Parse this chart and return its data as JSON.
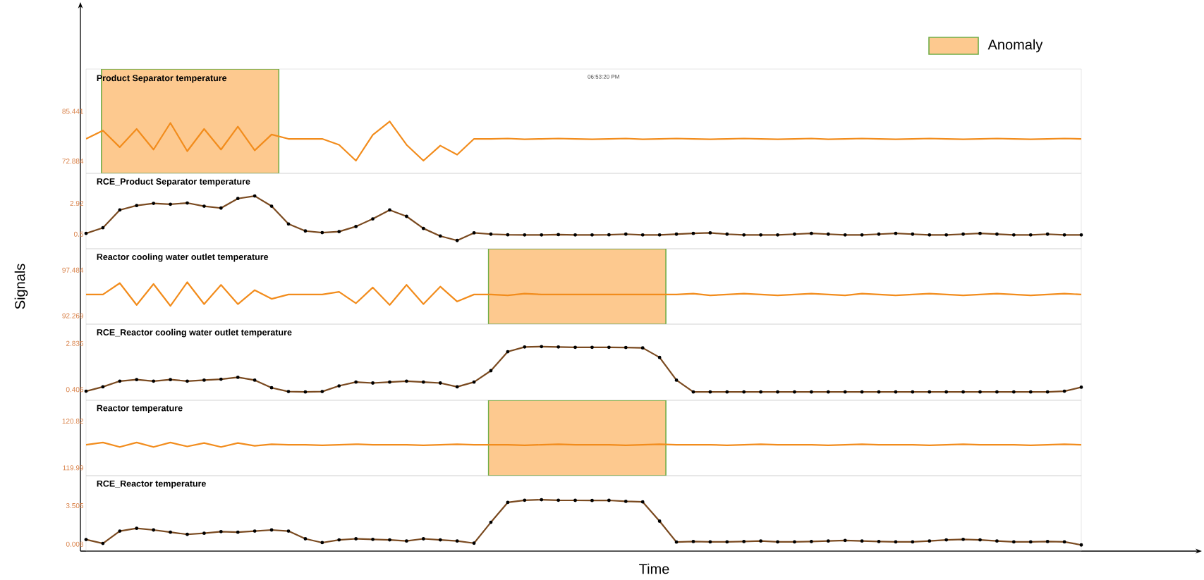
{
  "chart_data": [
    {
      "type": "line",
      "title": "Product Separator temperature",
      "annotations": [
        "06:53:20 PM",
        "Anomaly"
      ],
      "ylim": [
        69.8,
        96.1
      ],
      "yticks": [
        85.441,
        72.884
      ],
      "tick_labels": "y",
      "marker": "none",
      "line_style": "solid",
      "categories": [
        null,
        null,
        null,
        null,
        null,
        null,
        null,
        null,
        null,
        null,
        null,
        null,
        null,
        null,
        null,
        null,
        null,
        null,
        null,
        null,
        null,
        null,
        null,
        null,
        null,
        null,
        null,
        null,
        null,
        null,
        null,
        null,
        null,
        null,
        null,
        null,
        null,
        null,
        null,
        null,
        null,
        null,
        null,
        null,
        null,
        null,
        null,
        null,
        null,
        null,
        null,
        null,
        null,
        null,
        null,
        null,
        null,
        null,
        null,
        null
      ],
      "series": [
        {
          "color": "#f28c1c",
          "values": [
            78.5,
            80.6,
            76.4,
            81.0,
            75.8,
            82.5,
            75.4,
            81.0,
            75.8,
            81.6,
            75.6,
            79.6,
            78.5,
            78.5,
            78.5,
            77.0,
            73.0,
            79.5,
            82.9,
            77.0,
            73.0,
            76.8,
            74.5,
            78.5,
            78.5,
            78.6,
            78.4,
            78.5,
            78.6,
            78.5,
            78.4,
            78.5,
            78.6,
            78.4,
            78.5,
            78.6,
            78.5,
            78.4,
            78.5,
            78.6,
            78.5,
            78.4,
            78.5,
            78.6,
            78.4,
            78.5,
            78.6,
            78.5,
            78.4,
            78.5,
            78.6,
            78.5,
            78.4,
            78.5,
            78.6,
            78.5,
            78.4,
            78.5,
            78.6,
            78.5
          ]
        }
      ]
    },
    {
      "type": "line",
      "title": "RCE_Product Separator temperature",
      "ylim": [
        -0.65,
        5.28
      ],
      "yticks": [
        2.92,
        0.5
      ],
      "tick_labels": "y",
      "marker": "circle",
      "line_style": "solid",
      "categories": [
        null,
        null,
        null,
        null,
        null,
        null,
        null,
        null,
        null,
        null,
        null,
        null,
        null,
        null,
        null,
        null,
        null,
        null,
        null,
        null,
        null,
        null,
        null,
        null,
        null,
        null,
        null,
        null,
        null,
        null,
        null,
        null,
        null,
        null,
        null,
        null,
        null,
        null,
        null,
        null,
        null,
        null,
        null,
        null,
        null,
        null,
        null,
        null,
        null,
        null,
        null,
        null,
        null,
        null,
        null,
        null,
        null,
        null,
        null,
        null
      ],
      "series": [
        {
          "color": "#7a4a20",
          "values": [
            0.56,
            1.0,
            2.4,
            2.75,
            2.92,
            2.85,
            2.95,
            2.7,
            2.55,
            3.3,
            3.5,
            2.7,
            1.3,
            0.75,
            0.62,
            0.7,
            1.1,
            1.7,
            2.4,
            1.9,
            0.95,
            0.35,
            0.0,
            0.6,
            0.5,
            0.45,
            0.44,
            0.44,
            0.46,
            0.44,
            0.44,
            0.45,
            0.5,
            0.44,
            0.44,
            0.5,
            0.56,
            0.6,
            0.5,
            0.44,
            0.44,
            0.44,
            0.5,
            0.56,
            0.5,
            0.44,
            0.44,
            0.5,
            0.56,
            0.5,
            0.44,
            0.44,
            0.5,
            0.56,
            0.5,
            0.44,
            0.44,
            0.5,
            0.44,
            0.44
          ]
        }
      ]
    },
    {
      "type": "line",
      "title": "Reactor cooling water outlet temperature",
      "ylabel": "Signals",
      "ylim": [
        91.31,
        99.92
      ],
      "yticks": [
        97.484,
        92.269
      ],
      "tick_labels": "y",
      "marker": "none",
      "line_style": "solid",
      "categories": [
        null,
        null,
        null,
        null,
        null,
        null,
        null,
        null,
        null,
        null,
        null,
        null,
        null,
        null,
        null,
        null,
        null,
        null,
        null,
        null,
        null,
        null,
        null,
        null,
        null,
        null,
        null,
        null,
        null,
        null,
        null,
        null,
        null,
        null,
        null,
        null,
        null,
        null,
        null,
        null,
        null,
        null,
        null,
        null,
        null,
        null,
        null,
        null,
        null,
        null,
        null,
        null,
        null,
        null,
        null,
        null,
        null,
        null,
        null,
        null
      ],
      "series": [
        {
          "color": "#f28c1c",
          "values": [
            94.7,
            94.7,
            96.0,
            93.5,
            95.9,
            93.4,
            96.1,
            93.6,
            95.8,
            93.6,
            95.2,
            94.2,
            94.7,
            94.7,
            94.7,
            95.0,
            93.7,
            95.5,
            93.5,
            95.8,
            93.6,
            95.6,
            93.9,
            94.7,
            94.7,
            94.6,
            94.8,
            94.7,
            94.7,
            94.7,
            94.7,
            94.7,
            94.7,
            94.7,
            94.7,
            94.7,
            94.8,
            94.6,
            94.7,
            94.8,
            94.7,
            94.6,
            94.7,
            94.8,
            94.7,
            94.6,
            94.8,
            94.7,
            94.6,
            94.7,
            94.8,
            94.7,
            94.6,
            94.7,
            94.8,
            94.7,
            94.6,
            94.7,
            94.8,
            94.7
          ]
        }
      ]
    },
    {
      "type": "line",
      "title": "RCE_Reactor cooling water outlet temperature",
      "ylim": [
        -0.16,
        3.85
      ],
      "yticks": [
        2.835,
        0.406
      ],
      "tick_labels": "y",
      "marker": "circle",
      "line_style": "solid",
      "categories": [
        null,
        null,
        null,
        null,
        null,
        null,
        null,
        null,
        null,
        null,
        null,
        null,
        null,
        null,
        null,
        null,
        null,
        null,
        null,
        null,
        null,
        null,
        null,
        null,
        null,
        null,
        null,
        null,
        null,
        null,
        null,
        null,
        null,
        null,
        null,
        null,
        null,
        null,
        null,
        null,
        null,
        null,
        null,
        null,
        null,
        null,
        null,
        null,
        null,
        null,
        null,
        null,
        null,
        null,
        null,
        null,
        null,
        null,
        null,
        null
      ],
      "series": [
        {
          "color": "#7a4a20",
          "values": [
            0.32,
            0.55,
            0.85,
            0.93,
            0.85,
            0.93,
            0.85,
            0.9,
            0.95,
            1.05,
            0.9,
            0.5,
            0.3,
            0.28,
            0.3,
            0.6,
            0.8,
            0.75,
            0.8,
            0.85,
            0.8,
            0.75,
            0.55,
            0.8,
            1.4,
            2.4,
            2.65,
            2.67,
            2.65,
            2.63,
            2.63,
            2.63,
            2.62,
            2.6,
            2.1,
            0.9,
            0.28,
            0.28,
            0.28,
            0.28,
            0.28,
            0.28,
            0.28,
            0.28,
            0.28,
            0.28,
            0.28,
            0.28,
            0.28,
            0.28,
            0.28,
            0.28,
            0.28,
            0.28,
            0.28,
            0.28,
            0.28,
            0.28,
            0.32,
            0.53
          ]
        }
      ]
    },
    {
      "type": "line",
      "title": "Reactor temperature",
      "ylim": [
        119.85,
        121.19
      ],
      "yticks": [
        120.82,
        119.99
      ],
      "tick_labels": "y",
      "marker": "none",
      "line_style": "solid",
      "categories": [
        null,
        null,
        null,
        null,
        null,
        null,
        null,
        null,
        null,
        null,
        null,
        null,
        null,
        null,
        null,
        null,
        null,
        null,
        null,
        null,
        null,
        null,
        null,
        null,
        null,
        null,
        null,
        null,
        null,
        null,
        null,
        null,
        null,
        null,
        null,
        null,
        null,
        null,
        null,
        null,
        null,
        null,
        null,
        null,
        null,
        null,
        null,
        null,
        null,
        null,
        null,
        null,
        null,
        null,
        null,
        null,
        null,
        null,
        null,
        null
      ],
      "series": [
        {
          "color": "#f28c1c",
          "values": [
            120.4,
            120.44,
            120.36,
            120.44,
            120.36,
            120.44,
            120.37,
            120.43,
            120.36,
            120.43,
            120.38,
            120.41,
            120.4,
            120.4,
            120.39,
            120.4,
            120.41,
            120.4,
            120.4,
            120.4,
            120.39,
            120.4,
            120.41,
            120.4,
            120.4,
            120.4,
            120.39,
            120.4,
            120.41,
            120.4,
            120.4,
            120.4,
            120.39,
            120.4,
            120.41,
            120.4,
            120.4,
            120.4,
            120.39,
            120.4,
            120.41,
            120.4,
            120.4,
            120.4,
            120.39,
            120.4,
            120.41,
            120.4,
            120.4,
            120.4,
            120.39,
            120.4,
            120.41,
            120.4,
            120.4,
            120.4,
            120.39,
            120.4,
            120.41,
            120.4
          ]
        }
      ]
    },
    {
      "type": "line",
      "title": "RCE_Reactor temperature",
      "xlabel": "Time",
      "ylim": [
        -0.62,
        6.23
      ],
      "yticks": [
        3.505,
        0.008
      ],
      "tick_labels": "y",
      "marker": "circle",
      "line_style": "solid",
      "categories": [
        null,
        null,
        null,
        null,
        null,
        null,
        null,
        null,
        null,
        null,
        null,
        null,
        null,
        null,
        null,
        null,
        null,
        null,
        null,
        null,
        null,
        null,
        null,
        null,
        null,
        null,
        null,
        null,
        null,
        null,
        null,
        null,
        null,
        null,
        null,
        null,
        null,
        null,
        null,
        null,
        null,
        null,
        null,
        null,
        null,
        null,
        null,
        null,
        null,
        null,
        null,
        null,
        null,
        null,
        null,
        null,
        null,
        null,
        null,
        null
      ],
      "series": [
        {
          "color": "#7a4a20",
          "values": [
            0.43,
            0.08,
            1.2,
            1.45,
            1.3,
            1.1,
            0.9,
            1.0,
            1.15,
            1.1,
            1.2,
            1.3,
            1.2,
            0.5,
            0.15,
            0.4,
            0.5,
            0.45,
            0.4,
            0.3,
            0.5,
            0.4,
            0.3,
            0.1,
            2.0,
            3.8,
            4.0,
            4.05,
            4.0,
            3.99,
            3.98,
            3.99,
            3.9,
            3.85,
            2.1,
            0.2,
            0.25,
            0.22,
            0.22,
            0.25,
            0.3,
            0.22,
            0.22,
            0.25,
            0.3,
            0.35,
            0.3,
            0.25,
            0.22,
            0.22,
            0.3,
            0.4,
            0.45,
            0.4,
            0.3,
            0.22,
            0.22,
            0.25,
            0.22,
            -0.06
          ]
        }
      ]
    }
  ]
}
